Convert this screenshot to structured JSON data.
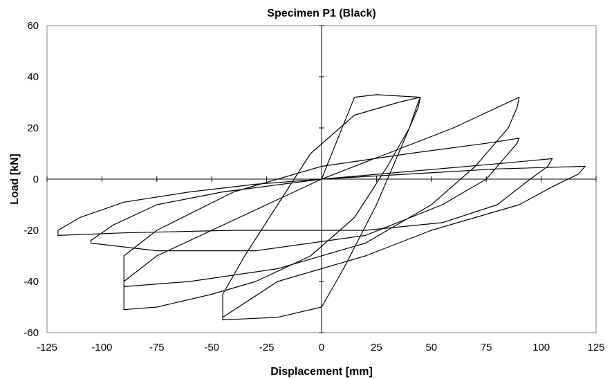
{
  "chart_data": {
    "type": "line",
    "title": "Specimen P1 (Black)",
    "xlabel": "Displacement [mm]",
    "ylabel": "Load [kN]",
    "xlim": [
      -125,
      125
    ],
    "ylim": [
      -60,
      60
    ],
    "xticks": [
      "-125",
      "-100",
      "-75",
      "-50",
      "-25",
      "0",
      "25",
      "50",
      "75",
      "100",
      "125"
    ],
    "yticks": [
      "60",
      "40",
      "20",
      "0",
      "-20",
      "-40",
      "-60"
    ],
    "grid": false,
    "legend": "none",
    "line_color": "#000000",
    "series": [
      {
        "x": [
          0,
          15,
          25,
          45,
          44,
          35,
          25,
          10,
          0,
          -20,
          -45,
          -45,
          -35,
          -20,
          -5,
          15,
          35,
          45,
          44,
          40,
          30,
          15,
          -5,
          -30,
          -50,
          -75,
          -90,
          -90,
          -75,
          -50,
          -25,
          0,
          30,
          60,
          90,
          89,
          85,
          70,
          50,
          20,
          -20,
          -60,
          -90,
          -90,
          -75,
          -40,
          0,
          40,
          75,
          90,
          89,
          85,
          75,
          55,
          20,
          -30,
          -75,
          -105,
          -105,
          -95,
          -75,
          -45,
          0,
          40,
          80,
          105,
          103,
          95,
          80,
          55,
          20,
          -40,
          -90,
          -120,
          -120,
          -110,
          -90,
          -60,
          -30,
          0,
          40,
          80,
          120,
          117,
          105,
          90,
          70,
          50,
          20,
          -20,
          -45
        ],
        "y": [
          0,
          32,
          33,
          32,
          28,
          10,
          -10,
          -35,
          -50,
          -54,
          -55,
          -45,
          -30,
          -10,
          10,
          25,
          30,
          32,
          30,
          20,
          5,
          -15,
          -30,
          -40,
          -45,
          -50,
          -51,
          -40,
          -30,
          -20,
          -10,
          0,
          10,
          20,
          32,
          28,
          20,
          5,
          -10,
          -25,
          -35,
          -40,
          -42,
          -30,
          -20,
          -5,
          5,
          10,
          14,
          16,
          14,
          10,
          0,
          -10,
          -22,
          -28,
          -28,
          -25,
          -24,
          -18,
          -10,
          -5,
          0,
          3,
          6,
          8,
          5,
          0,
          -10,
          -17,
          -20,
          -20,
          -21,
          -22,
          -20,
          -15,
          -9,
          -5,
          -2,
          0,
          2,
          4,
          5,
          2,
          -3,
          -10,
          -15,
          -20,
          -30,
          -40,
          -54
        ]
      }
    ]
  }
}
